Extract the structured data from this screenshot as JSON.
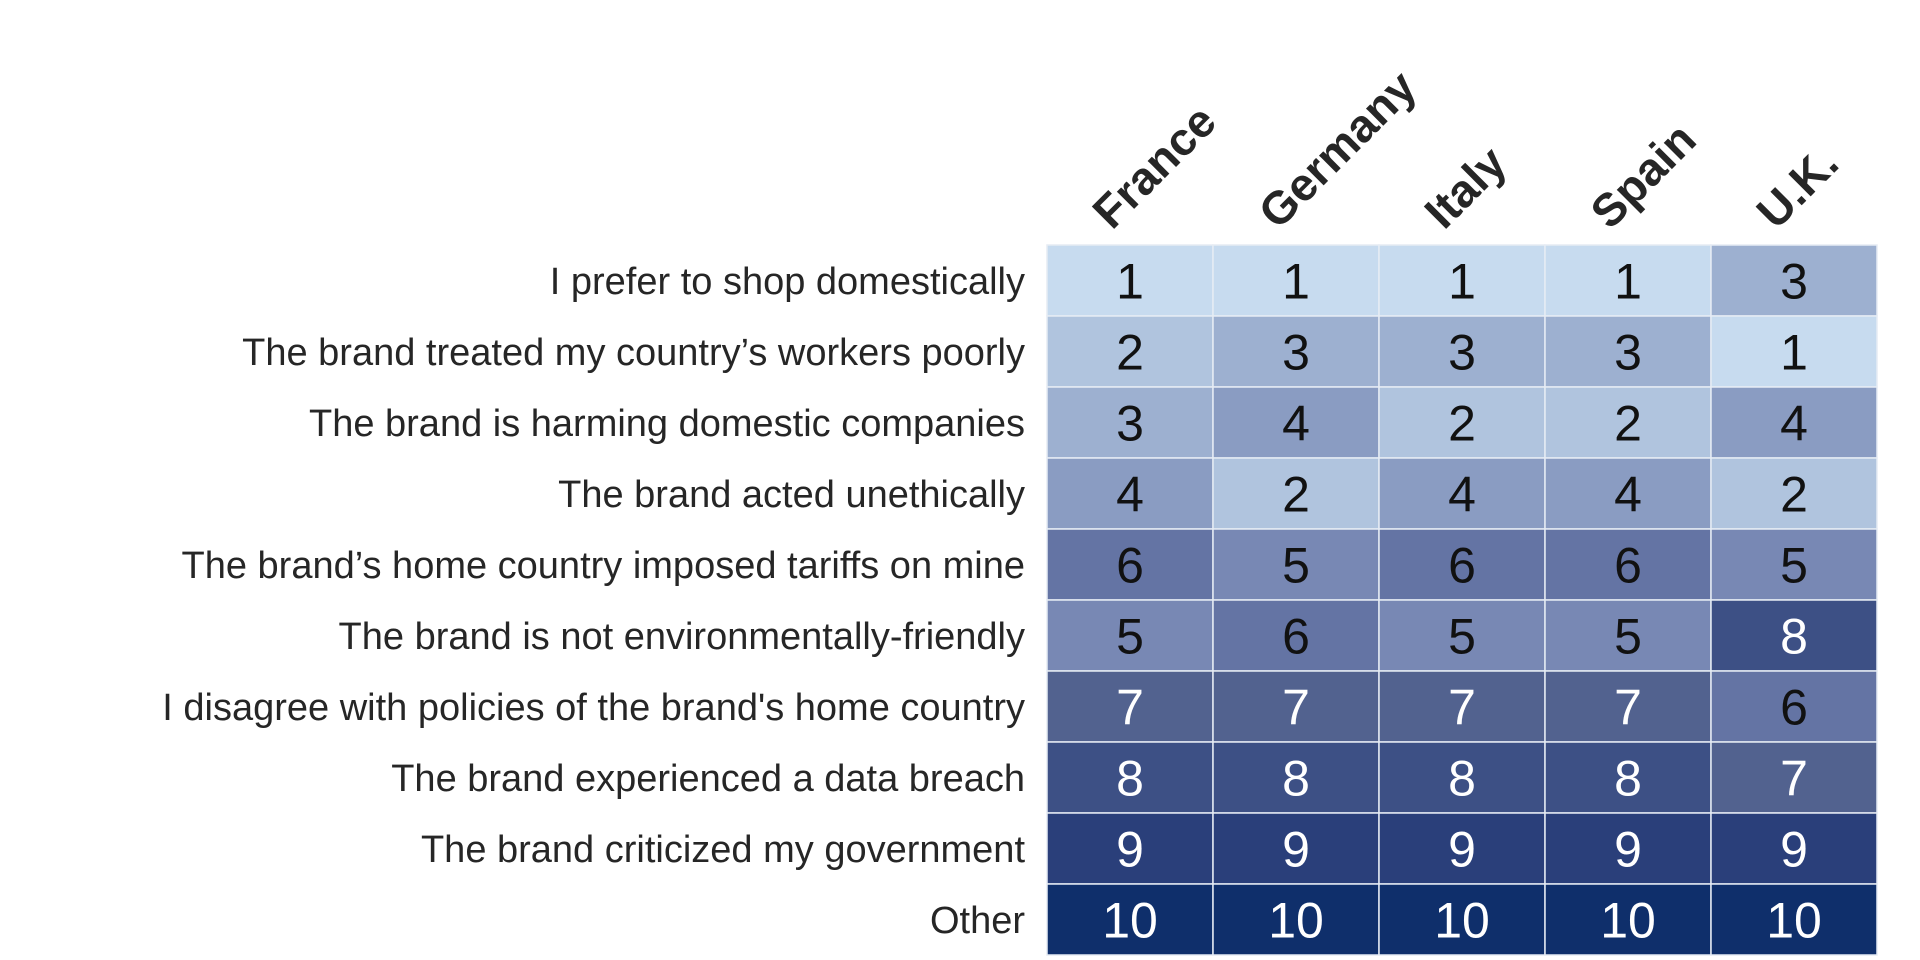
{
  "chart_data": {
    "type": "heatmap",
    "columns": [
      "France",
      "Germany",
      "Italy",
      "Spain",
      "U.K."
    ],
    "rows": [
      "I prefer to shop domestically",
      "The brand treated my country’s workers poorly",
      "The brand is harming domestic companies",
      "The brand acted unethically",
      "The brand’s home country imposed tariffs on mine",
      "The brand is not environmentally-friendly",
      "I disagree with policies of the brand's home country",
      "The brand experienced a data breach",
      "The brand criticized my government",
      "Other"
    ],
    "values": [
      [
        1,
        1,
        1,
        1,
        3
      ],
      [
        2,
        3,
        3,
        3,
        1
      ],
      [
        3,
        4,
        2,
        2,
        4
      ],
      [
        4,
        2,
        4,
        4,
        2
      ],
      [
        6,
        5,
        6,
        6,
        5
      ],
      [
        5,
        6,
        5,
        5,
        8
      ],
      [
        7,
        7,
        7,
        7,
        6
      ],
      [
        8,
        8,
        8,
        8,
        7
      ],
      [
        9,
        9,
        9,
        9,
        9
      ],
      [
        10,
        10,
        10,
        10,
        10
      ]
    ],
    "color_scale": {
      "1": "#c7dbef",
      "2": "#b0c4de",
      "3": "#9db0d0",
      "4": "#8a9cc2",
      "5": "#7888b4",
      "6": "#6474a4",
      "7": "#52628f",
      "8": "#3d5085",
      "9": "#2a3f7a",
      "10": "#0f2f6b"
    },
    "text_color_dark": "#111111",
    "text_color_light": "#ffffff",
    "label_color": "#262626",
    "cell_border": "#e6ecf4"
  }
}
